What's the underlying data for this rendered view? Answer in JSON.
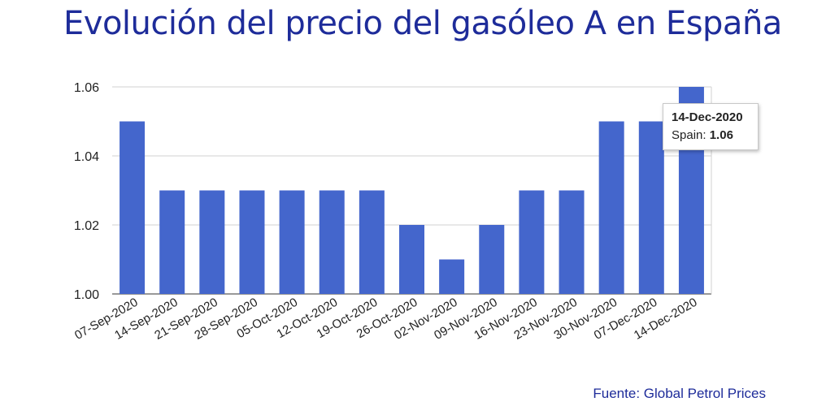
{
  "header": {
    "title": "Evolución del precio del gasóleo A en España"
  },
  "footer": {
    "source": "Fuente: Global Petrol Prices"
  },
  "tooltip": {
    "date": "14-Dec-2020",
    "series_label": "Spain:",
    "value": "1.06"
  },
  "colors": {
    "bar": "#4466cc",
    "title": "#1e2c9a",
    "grid": "#d0d0d0"
  },
  "chart_data": {
    "type": "bar",
    "categories": [
      "07-Sep-2020",
      "14-Sep-2020",
      "21-Sep-2020",
      "28-Sep-2020",
      "05-Oct-2020",
      "12-Oct-2020",
      "19-Oct-2020",
      "26-Oct-2020",
      "02-Nov-2020",
      "09-Nov-2020",
      "16-Nov-2020",
      "23-Nov-2020",
      "30-Nov-2020",
      "07-Dec-2020",
      "14-Dec-2020"
    ],
    "series": [
      {
        "name": "Spain",
        "values": [
          1.05,
          1.03,
          1.03,
          1.03,
          1.03,
          1.03,
          1.03,
          1.02,
          1.01,
          1.02,
          1.03,
          1.03,
          1.05,
          1.05,
          1.06
        ]
      }
    ],
    "ylim": [
      1.0,
      1.06
    ],
    "yticks": [
      1.0,
      1.02,
      1.04,
      1.06
    ],
    "ytick_labels": [
      "1.00",
      "1.02",
      "1.04",
      "1.06"
    ],
    "grid": true,
    "xlabel": "",
    "ylabel": ""
  }
}
